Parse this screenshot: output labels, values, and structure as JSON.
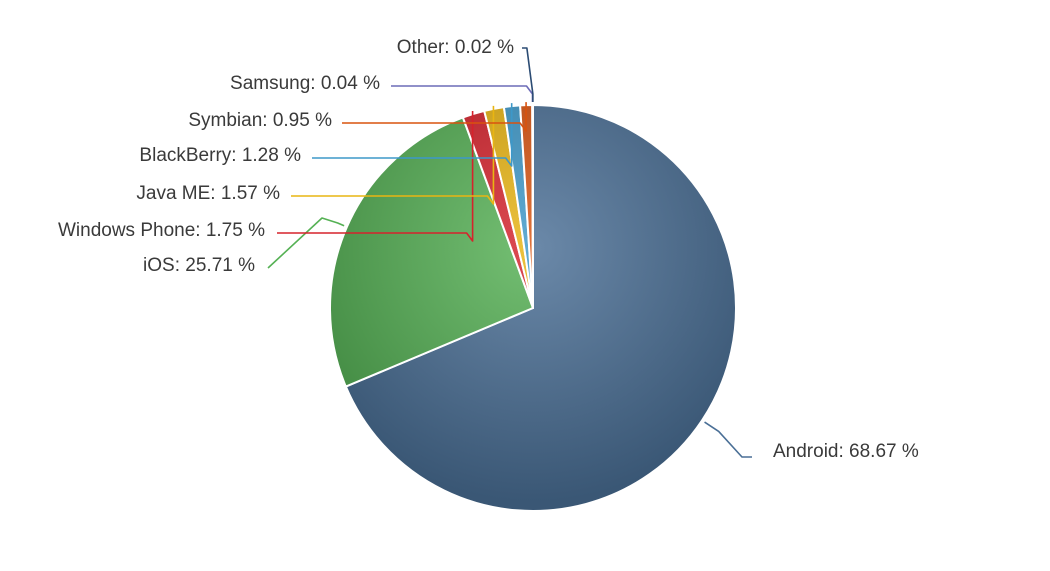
{
  "chart_data": {
    "type": "pie",
    "title": "",
    "unit": "%",
    "slices": [
      {
        "label": "Android",
        "value": 68.67,
        "color": "#4a6f96",
        "text": "Android: 68.67 %"
      },
      {
        "label": "iOS",
        "value": 25.71,
        "color": "#55b154",
        "text": "iOS: 25.71 %"
      },
      {
        "label": "Windows Phone",
        "value": 1.75,
        "color": "#d6222c",
        "text": "Windows Phone: 1.75 %"
      },
      {
        "label": "Java ME",
        "value": 1.57,
        "color": "#e9b512",
        "text": "Java ME: 1.57 %"
      },
      {
        "label": "BlackBerry",
        "value": 1.28,
        "color": "#3d98c9",
        "text": "BlackBerry: 1.28 %"
      },
      {
        "label": "Symbian",
        "value": 0.95,
        "color": "#d9530f",
        "text": "Symbian: 0.95 %"
      },
      {
        "label": "Samsung",
        "value": 0.04,
        "color": "#6c6bb7",
        "text": "Samsung: 0.04 %"
      },
      {
        "label": "Other",
        "value": 0.02,
        "color": "#2b4b73",
        "text": "Other: 0.02 %"
      }
    ]
  }
}
